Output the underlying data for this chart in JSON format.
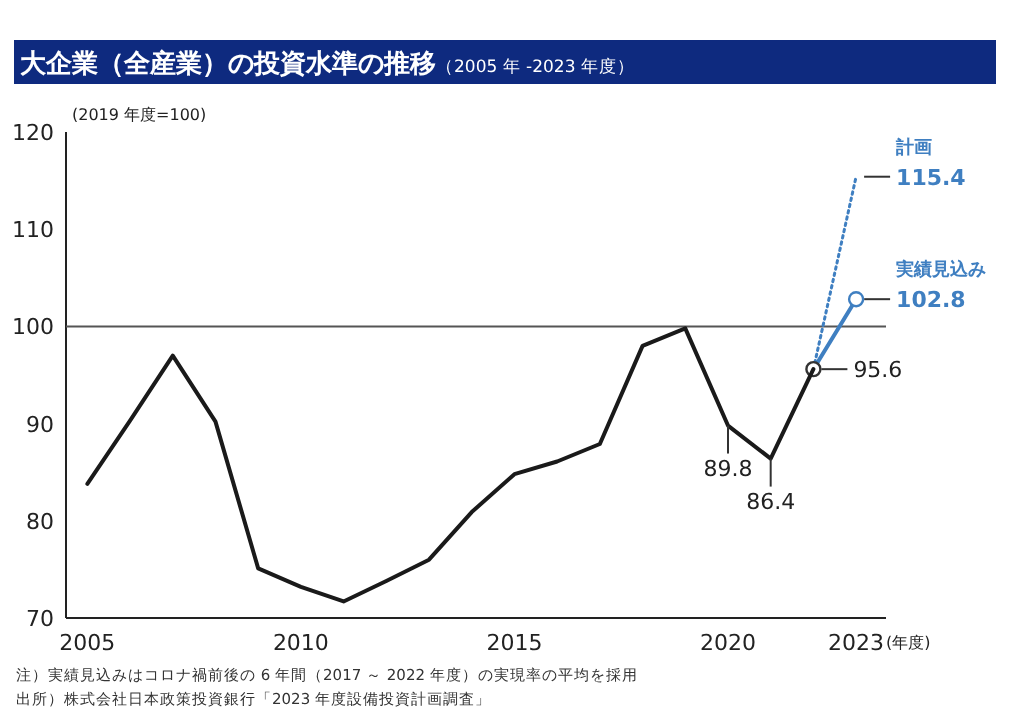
{
  "chart_data": {
    "type": "line",
    "title": "大企業（全産業）の投資水準の推移",
    "subtitle": "（2005 年 -2023 年度）",
    "ylabel": "(2019 年度=100)",
    "xlabel": "(年度)",
    "xlim": [
      2004.5,
      2023.7
    ],
    "ylim": [
      70,
      120
    ],
    "xticks": [
      2005,
      2010,
      2015,
      2020,
      2023
    ],
    "yticks": [
      70,
      80,
      90,
      100,
      110,
      120
    ],
    "grid": false,
    "legend": false,
    "series": [
      {
        "color": "#1a1a1a",
        "x": [
          2005,
          2006,
          2007,
          2008,
          2009,
          2010,
          2011,
          2012,
          2013,
          2014,
          2015,
          2016,
          2017,
          2018,
          2019,
          2020,
          2021,
          2022
        ],
        "values": [
          83.8,
          90.3,
          97.0,
          90.2,
          75.1,
          73.2,
          71.7,
          73.8,
          76.0,
          80.9,
          84.8,
          86.1,
          87.9,
          98.0,
          99.8,
          89.8,
          86.4,
          95.6
        ],
        "value_labels": [
          null,
          null,
          null,
          null,
          null,
          null,
          null,
          null,
          null,
          null,
          null,
          null,
          null,
          null,
          null,
          "89.8",
          "86.4",
          "95.6"
        ]
      },
      {
        "name": "実績見込み",
        "color": "#3f7fc1",
        "x": [
          2022,
          2023
        ],
        "values": [
          95.6,
          102.8
        ],
        "value_labels": [
          null,
          "102.8"
        ],
        "marker": "circle",
        "line_style": "solid"
      },
      {
        "name": "計画",
        "color": "#3f7fc1",
        "x": [
          2022,
          2023
        ],
        "values": [
          95.6,
          115.4
        ],
        "value_labels": [
          null,
          "115.4"
        ],
        "marker": "none",
        "line_style": "dotted"
      }
    ],
    "ref_lines": [
      {
        "axis": "y",
        "value": 100,
        "color": "#555555"
      }
    ],
    "annotations": [
      "注）実績見込みはコロナ禍前後の 6 年間（2017 ～ 2022 年度）の実現率の平均を採用",
      "出所）株式会社日本政策投資銀行「2023 年度設備投資計画調査」"
    ]
  }
}
